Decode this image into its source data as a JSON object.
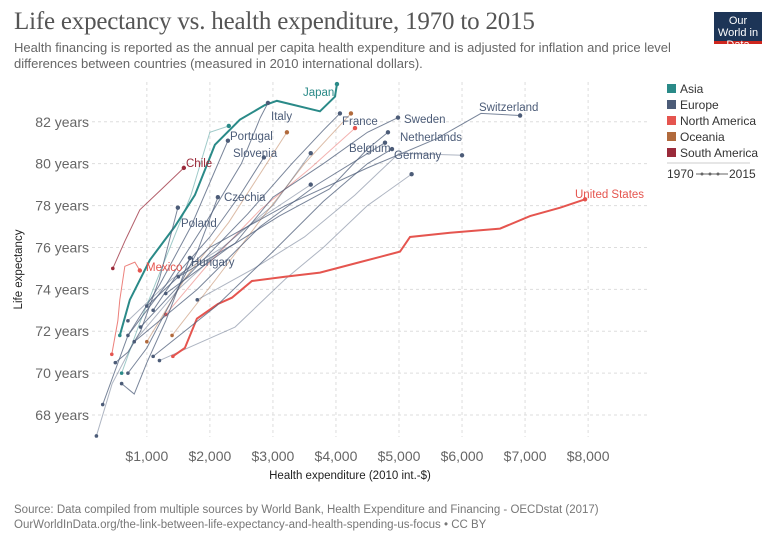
{
  "header": {
    "title": "Life expectancy vs. health expenditure, 1970 to 2015",
    "subtitle": "Health financing is reported as the annual per capita health expenditure and is adjusted for inflation and price level differences between countries (measured in 2010 international dollars).",
    "logo": "Our World in Data"
  },
  "footer": {
    "source": "Source: Data compiled from multiple sources by World Bank, Health Expenditure and Financing - OECDstat (2017)",
    "url": "OurWorldInData.org/the-link-between-life-expectancy-and-health-spending-us-focus • CC BY"
  },
  "chart_data": {
    "type": "line",
    "subtype": "connected-scatter",
    "xlabel": "Health expenditure (2010 int.-$)",
    "ylabel": "Life expectancy",
    "xlim": [
      130,
      8950
    ],
    "ylim": [
      66.95,
      83.9
    ],
    "xticks": [
      1000,
      2000,
      3000,
      4000,
      5000,
      6000,
      7000,
      8000
    ],
    "xtick_labels": [
      "$1,000",
      "$2,000",
      "$3,000",
      "$4,000",
      "$5,000",
      "$6,000",
      "$7,000",
      "$8,000"
    ],
    "yticks": [
      68,
      70,
      72,
      74,
      76,
      78,
      80,
      82
    ],
    "ytick_labels": [
      "68 years",
      "70 years",
      "72 years",
      "74 years",
      "76 years",
      "78 years",
      "80 years",
      "82 years"
    ],
    "grid": true,
    "legend": {
      "placement": "right",
      "items": [
        {
          "name": "Asia",
          "color": "#2a8a88"
        },
        {
          "name": "Europe",
          "color": "#4c5c78"
        },
        {
          "name": "North America",
          "color": "#e5554f"
        },
        {
          "name": "Oceania",
          "color": "#b16a3c"
        },
        {
          "name": "South America",
          "color": "#9a2a3a"
        }
      ],
      "time_start": "1970",
      "time_end": "2015"
    },
    "series": [
      {
        "name": "United States",
        "region": "North America",
        "points": [
          [
            1413,
            70.8
          ],
          [
            1603,
            71.2
          ],
          [
            1794,
            72.6
          ],
          [
            2127,
            73.3
          ],
          [
            2349,
            73.6
          ],
          [
            2667,
            74.4
          ],
          [
            3190,
            74.6
          ],
          [
            3746,
            74.8
          ],
          [
            4381,
            75.3
          ],
          [
            5016,
            75.8
          ],
          [
            5175,
            76.5
          ],
          [
            5810,
            76.7
          ],
          [
            6603,
            76.9
          ],
          [
            7079,
            77.5
          ],
          [
            7556,
            77.9
          ],
          [
            7952,
            78.3
          ]
        ]
      },
      {
        "name": "Japan",
        "region": "Asia",
        "points": [
          [
            571,
            71.8
          ],
          [
            730,
            73.5
          ],
          [
            1048,
            75.4
          ],
          [
            1444,
            77.0
          ],
          [
            1762,
            78.5
          ],
          [
            1921,
            79.7
          ],
          [
            2079,
            80.9
          ],
          [
            2476,
            82.1
          ],
          [
            2873,
            82.8
          ],
          [
            3063,
            83.0
          ],
          [
            3746,
            82.5
          ],
          [
            3984,
            83.2
          ],
          [
            4016,
            83.8
          ]
        ]
      },
      {
        "name": "Chile",
        "region": "South America",
        "points": [
          [
            460,
            75.0
          ],
          [
            651,
            76.3
          ],
          [
            889,
            77.8
          ],
          [
            1206,
            78.7
          ],
          [
            1587,
            79.8
          ]
        ]
      },
      {
        "name": "Mexico",
        "region": "North America",
        "points": [
          [
            444,
            70.9
          ],
          [
            540,
            72.5
          ],
          [
            571,
            73.5
          ],
          [
            651,
            75.1
          ],
          [
            810,
            75.3
          ],
          [
            889,
            74.9
          ]
        ]
      },
      {
        "name": "Switzerland",
        "region": "Europe",
        "points": [
          [
            1000,
            73.2
          ],
          [
            2000,
            76.0
          ],
          [
            3200,
            78.0
          ],
          [
            4500,
            79.8
          ],
          [
            5600,
            81.2
          ],
          [
            6300,
            82.4
          ],
          [
            6921,
            82.3
          ]
        ]
      },
      {
        "name": "Italy",
        "region": "Europe",
        "points": [
          [
            700,
            71.8
          ],
          [
            1300,
            74.2
          ],
          [
            2000,
            77.5
          ],
          [
            2500,
            80.0
          ],
          [
            2800,
            82.2
          ],
          [
            2921,
            82.9
          ]
        ]
      },
      {
        "name": "France",
        "region": "Europe",
        "points": [
          [
            900,
            72.2
          ],
          [
            1700,
            74.8
          ],
          [
            2600,
            77.6
          ],
          [
            3300,
            80.0
          ],
          [
            3800,
            81.6
          ],
          [
            4063,
            82.4
          ]
        ]
      },
      {
        "name": "Sweden",
        "region": "Europe",
        "points": [
          [
            1500,
            74.6
          ],
          [
            2400,
            76.2
          ],
          [
            3000,
            78.4
          ],
          [
            3800,
            80.0
          ],
          [
            4500,
            81.5
          ],
          [
            4984,
            82.2
          ]
        ]
      },
      {
        "name": "Netherlands",
        "region": "Europe",
        "points": [
          [
            1300,
            73.8
          ],
          [
            2300,
            76.0
          ],
          [
            3100,
            77.5
          ],
          [
            3900,
            78.8
          ],
          [
            4500,
            80.7
          ],
          [
            4825,
            81.5
          ]
        ]
      },
      {
        "name": "Belgium",
        "region": "Europe",
        "points": [
          [
            800,
            71.5
          ],
          [
            1800,
            74.0
          ],
          [
            2800,
            77.0
          ],
          [
            3700,
            79.0
          ],
          [
            4400,
            80.3
          ],
          [
            4778,
            81.0
          ]
        ]
      },
      {
        "name": "Germany",
        "region": "Europe",
        "points": [
          [
            1100,
            70.8
          ],
          [
            2100,
            73.2
          ],
          [
            3000,
            75.8
          ],
          [
            3800,
            78.2
          ],
          [
            4500,
            80.0
          ],
          [
            4889,
            80.7
          ]
        ]
      },
      {
        "name": "Portugal",
        "region": "Europe",
        "points": [
          [
            300,
            68.5
          ],
          [
            700,
            71.8
          ],
          [
            1200,
            74.2
          ],
          [
            1700,
            77.0
          ],
          [
            2100,
            79.8
          ],
          [
            2286,
            81.1
          ]
        ]
      },
      {
        "name": "Slovenia",
        "region": "Europe",
        "points": [
          [
            1100,
            73.0
          ],
          [
            1500,
            74.8
          ],
          [
            2000,
            76.5
          ],
          [
            2500,
            78.6
          ],
          [
            2857,
            80.3
          ]
        ]
      },
      {
        "name": "Czechia",
        "region": "Europe",
        "points": [
          [
            700,
            70.0
          ],
          [
            1000,
            71.2
          ],
          [
            1400,
            73.5
          ],
          [
            1800,
            75.8
          ],
          [
            2127,
            78.4
          ]
        ]
      },
      {
        "name": "Poland",
        "region": "Europe",
        "points": [
          [
            500,
            70.5
          ],
          [
            700,
            71.0
          ],
          [
            900,
            72.0
          ],
          [
            1200,
            74.5
          ],
          [
            1492,
            77.9
          ]
        ]
      },
      {
        "name": "Hungary",
        "region": "Europe",
        "points": [
          [
            600,
            69.5
          ],
          [
            800,
            69.0
          ],
          [
            1000,
            70.5
          ],
          [
            1300,
            72.5
          ],
          [
            1683,
            75.5
          ]
        ]
      },
      {
        "name": "",
        "region": "Oceania",
        "points": [
          [
            1000,
            71.5
          ],
          [
            1600,
            74.5
          ],
          [
            2300,
            77.2
          ],
          [
            2900,
            80.0
          ],
          [
            3222,
            81.5
          ]
        ]
      },
      {
        "name": "",
        "region": "Oceania",
        "points": [
          [
            1400,
            71.8
          ],
          [
            2100,
            74.5
          ],
          [
            2800,
            77.3
          ],
          [
            3500,
            80.0
          ],
          [
            4238,
            82.4
          ]
        ]
      },
      {
        "name": "",
        "region": "North America",
        "points": [
          [
            1300,
            72.8
          ],
          [
            2000,
            75.3
          ],
          [
            2800,
            77.8
          ],
          [
            3600,
            79.8
          ],
          [
            4302,
            81.7
          ]
        ]
      },
      {
        "name": "",
        "region": "Europe",
        "points": [
          [
            200,
            67.0
          ],
          [
            450,
            69.5
          ],
          [
            800,
            71.5
          ],
          [
            1500,
            74.0
          ],
          [
            2500,
            76.8
          ],
          [
            3600,
            79.0
          ]
        ]
      },
      {
        "name": "",
        "region": "Europe",
        "points": [
          [
            1800,
            73.5
          ],
          [
            2700,
            75.0
          ],
          [
            3500,
            76.5
          ],
          [
            4300,
            78.5
          ],
          [
            5000,
            80.5
          ],
          [
            6000,
            80.4
          ]
        ]
      },
      {
        "name": "",
        "region": "Europe",
        "points": [
          [
            700,
            72.5
          ],
          [
            1400,
            74.5
          ],
          [
            2200,
            76.0
          ],
          [
            3000,
            78.0
          ],
          [
            3600,
            80.5
          ]
        ]
      },
      {
        "name": "",
        "region": "Europe",
        "points": [
          [
            1200,
            70.6
          ],
          [
            2400,
            72.2
          ],
          [
            3200,
            74.5
          ],
          [
            3800,
            76.0
          ],
          [
            4500,
            78.0
          ],
          [
            5200,
            79.5
          ]
        ]
      },
      {
        "name": "",
        "region": "Asia",
        "points": [
          [
            600,
            70.0
          ],
          [
            900,
            72.5
          ],
          [
            1300,
            75.5
          ],
          [
            1700,
            78.5
          ],
          [
            2000,
            81.5
          ],
          [
            2300,
            81.8
          ]
        ]
      }
    ]
  }
}
